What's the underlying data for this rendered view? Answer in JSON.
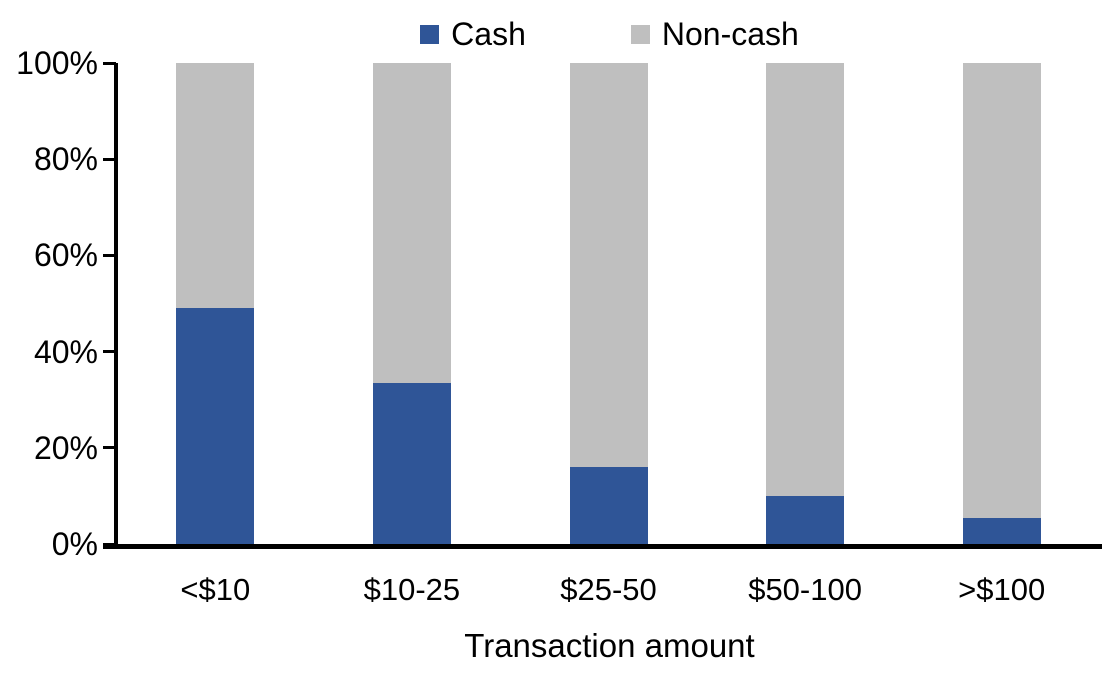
{
  "chart_data": {
    "type": "bar",
    "stacked": true,
    "stacked_mode": "percent",
    "title": "",
    "xlabel": "Transaction amount",
    "ylabel": "",
    "categories": [
      "<$10",
      "$10-25",
      "$25-50",
      "$50-100",
      ">$100"
    ],
    "series": [
      {
        "name": "Cash",
        "color": "#2F5597",
        "values": [
          49,
          33.5,
          16,
          10,
          5.5
        ]
      },
      {
        "name": "Non-cash",
        "color": "#BFBFBF",
        "values": [
          51,
          66.5,
          84,
          90,
          94.5
        ]
      }
    ],
    "y_axis": {
      "ticks": [
        {
          "value": 0,
          "label": "0%"
        },
        {
          "value": 20,
          "label": "20%"
        },
        {
          "value": 40,
          "label": "40%"
        },
        {
          "value": 60,
          "label": "60%"
        },
        {
          "value": 80,
          "label": "80%"
        },
        {
          "value": 100,
          "label": "100%"
        }
      ],
      "ylim": [
        0,
        100
      ]
    },
    "grid": false,
    "legend_position": "top",
    "axis_color": "#000000",
    "background_color": "#FFFFFF"
  }
}
